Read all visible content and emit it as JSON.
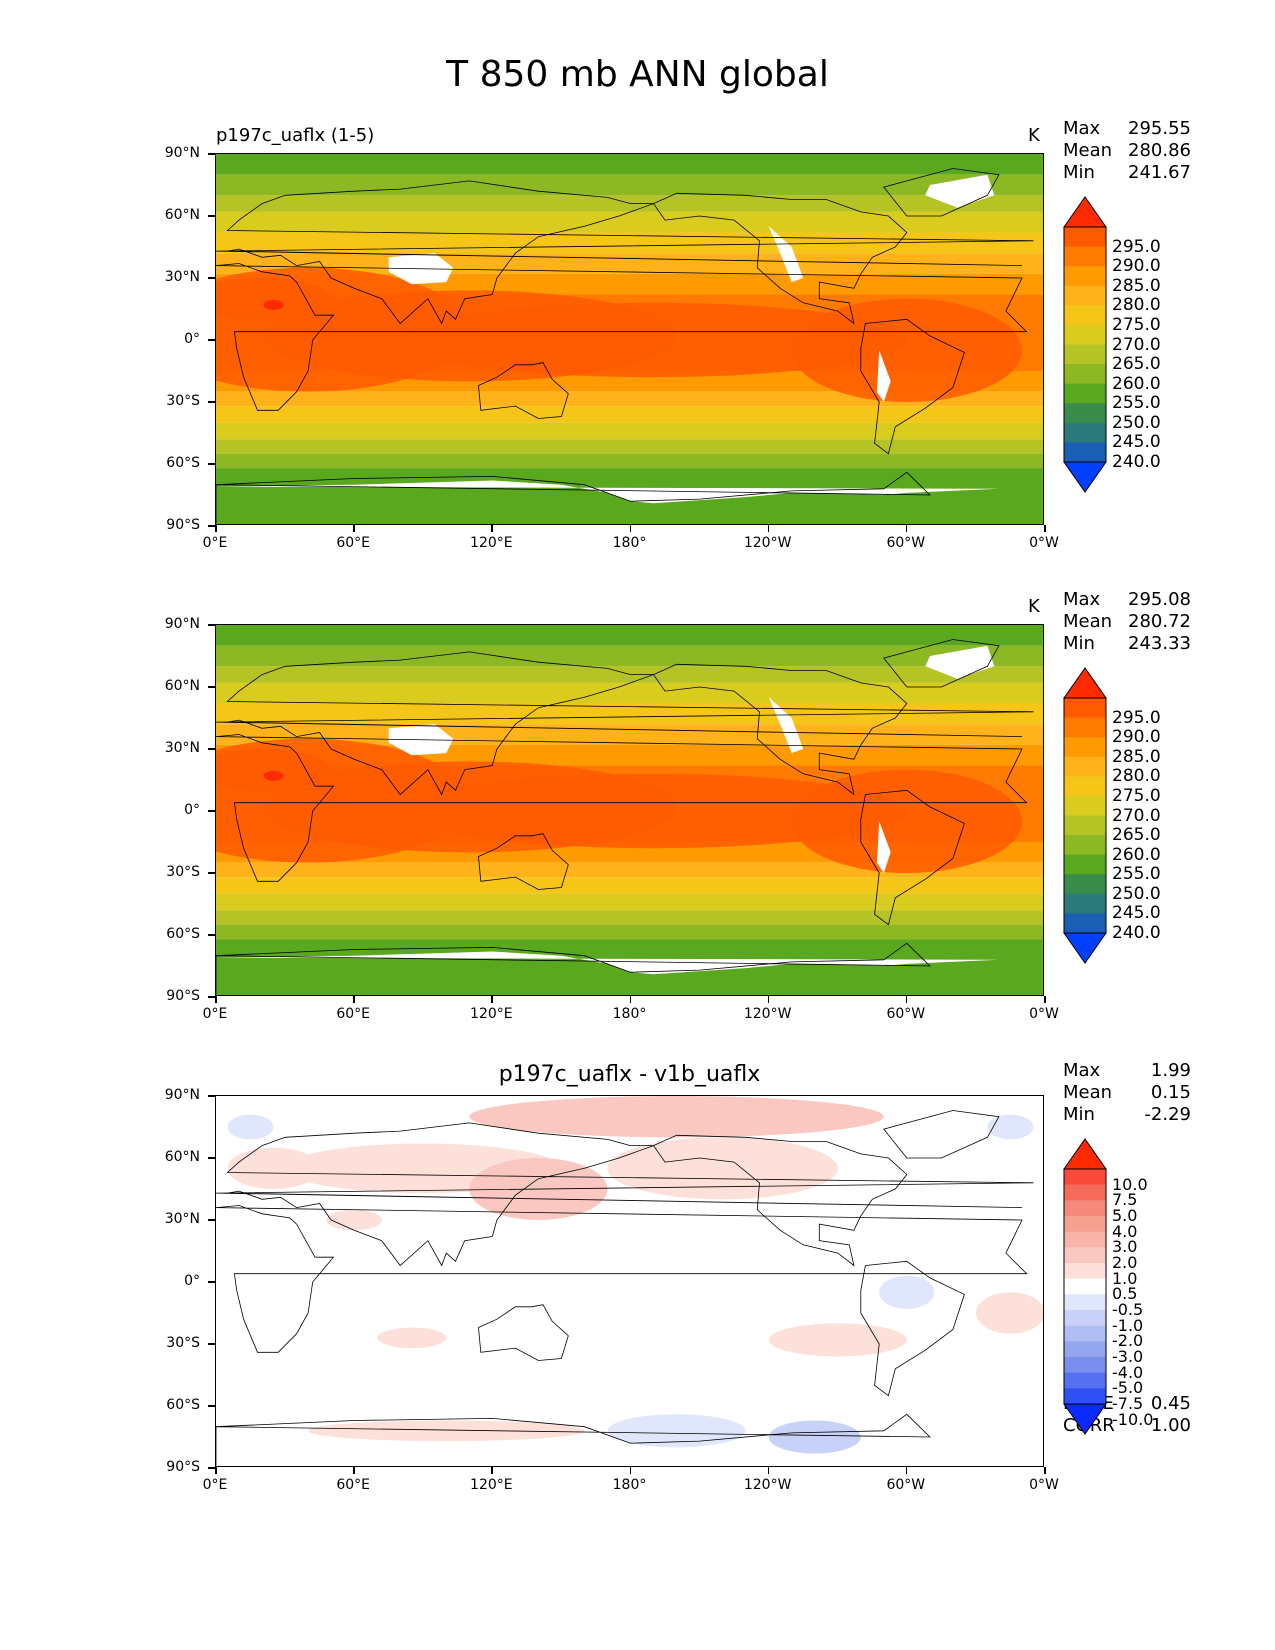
{
  "suptitle": "T 850 mb ANN global",
  "axes": {
    "lat_ticks": [
      "90°N",
      "60°N",
      "30°N",
      "0°",
      "30°S",
      "60°S",
      "90°S"
    ],
    "lon_ticks": [
      "0°E",
      "60°E",
      "120°E",
      "180°",
      "120°W",
      "60°W",
      "0°W"
    ]
  },
  "panels": [
    {
      "title_left": "p197c_uaflx (1-5)",
      "title_center": "",
      "units": "K",
      "stats": {
        "max_label": "Max",
        "max": "295.55",
        "mean_label": "Mean",
        "mean": "280.86",
        "min_label": "Min",
        "min": "241.67"
      },
      "colorbar": {
        "labels": [
          "295.0",
          "290.0",
          "285.0",
          "280.0",
          "275.0",
          "270.0",
          "265.0",
          "260.0",
          "255.0",
          "250.0",
          "245.0",
          "240.0"
        ],
        "colors": [
          "#ff2a00",
          "#ff5a00",
          "#ff7a00",
          "#ff9a00",
          "#ffb21a",
          "#f5c518",
          "#d9cc1f",
          "#b5c324",
          "#8cb823",
          "#5aa81e",
          "#3a8c4a",
          "#2a7a7a",
          "#1a5fb4",
          "#0040ff"
        ]
      }
    },
    {
      "title_left": "",
      "title_center": "",
      "units": "K",
      "stats": {
        "max_label": "Max",
        "max": "295.08",
        "mean_label": "Mean",
        "mean": "280.72",
        "min_label": "Min",
        "min": "243.33"
      },
      "colorbar": {
        "labels": [
          "295.0",
          "290.0",
          "285.0",
          "280.0",
          "275.0",
          "270.0",
          "265.0",
          "260.0",
          "255.0",
          "250.0",
          "245.0",
          "240.0"
        ],
        "colors": [
          "#ff2a00",
          "#ff5a00",
          "#ff7a00",
          "#ff9a00",
          "#ffb21a",
          "#f5c518",
          "#d9cc1f",
          "#b5c324",
          "#8cb823",
          "#5aa81e",
          "#3a8c4a",
          "#2a7a7a",
          "#1a5fb4",
          "#0040ff"
        ]
      }
    },
    {
      "title_left": "",
      "title_center": "p197c_uaflx - v1b_uaflx",
      "units": "",
      "stats": {
        "max_label": "Max",
        "max": "1.99",
        "mean_label": "Mean",
        "mean": "0.15",
        "min_label": "Min",
        "min": "-2.29"
      },
      "extra_stats": {
        "rmse_label": "RMSE",
        "rmse": "0.45",
        "corr_label": "CORR",
        "corr": "1.00"
      },
      "colorbar": {
        "labels": [
          "10.0",
          "7.5",
          "5.0",
          "4.0",
          "3.0",
          "2.0",
          "1.0",
          "0.5",
          "-0.5",
          "-1.0",
          "-2.0",
          "-3.0",
          "-4.0",
          "-5.0",
          "-7.5",
          "-10.0"
        ],
        "colors": [
          "#ff2a00",
          "#fb4a3a",
          "#f66a5a",
          "#f58a7a",
          "#f6a090",
          "#f8b4a8",
          "#fac8c0",
          "#fde0da",
          "#ffffff",
          "#e0e6fb",
          "#c8d2f8",
          "#b0beF4",
          "#94a6f0",
          "#7a8ef0",
          "#5570f2",
          "#3050f6",
          "#0a2aff"
        ]
      }
    }
  ]
}
